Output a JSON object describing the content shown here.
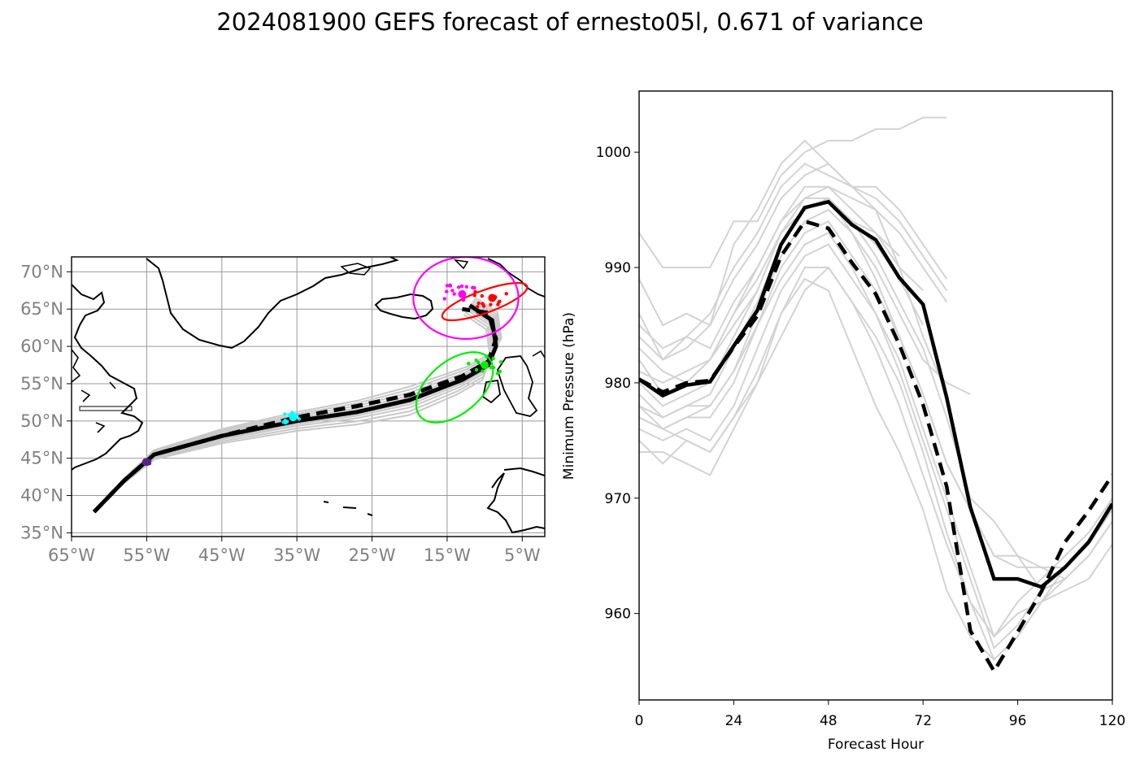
{
  "figure": {
    "title": "2024081900 GEFS forecast of ernesto05l, 0.671 of variance"
  },
  "chart_data": [
    {
      "type": "map",
      "lon_ticks": [
        "65°W",
        "55°W",
        "45°W",
        "35°W",
        "25°W",
        "15°W",
        "5°W"
      ],
      "lat_ticks": [
        "70°N",
        "65°N",
        "60°N",
        "55°N",
        "50°N",
        "45°N",
        "40°N",
        "35°N"
      ],
      "lon_range": [
        -65,
        -2
      ],
      "lat_range": [
        34.5,
        72
      ],
      "grid": true,
      "track_mean": [
        [
          -62,
          37.8
        ],
        [
          -58,
          42
        ],
        [
          -54,
          45.5
        ],
        [
          -45,
          48
        ],
        [
          -35,
          50
        ],
        [
          -27,
          51.2
        ],
        [
          -20,
          52.8
        ],
        [
          -13,
          55.5
        ],
        [
          -9.5,
          57.5
        ],
        [
          -8.5,
          60
        ],
        [
          -9,
          63.5
        ],
        [
          -12,
          65.5
        ]
      ],
      "track_dashed": [
        [
          -62,
          37.8
        ],
        [
          -58,
          42
        ],
        [
          -54,
          45.5
        ],
        [
          -45,
          48
        ],
        [
          -35,
          50.5
        ],
        [
          -27,
          52
        ],
        [
          -20,
          53.5
        ],
        [
          -13,
          56
        ],
        [
          -9.5,
          58
        ],
        [
          -8.5,
          61
        ],
        [
          -9.5,
          64.5
        ],
        [
          -13,
          65
        ]
      ],
      "ellipses": [
        {
          "color": "#ff0000",
          "center": [
            -10,
            66
          ],
          "rx_deg": 6,
          "ry_deg": 1.5,
          "rotation": -20
        },
        {
          "color": "#ff00ff",
          "center": [
            -12.5,
            66.5
          ],
          "rx_deg": 7,
          "ry_deg": 5.5,
          "rotation": 0
        },
        {
          "color": "#00ee00",
          "center": [
            -14,
            54.5
          ],
          "rx_deg": 6,
          "ry_deg": 3.5,
          "rotation": -40
        }
      ],
      "point_clusters": [
        {
          "color": "#552288",
          "center": [
            -55,
            44.5
          ]
        },
        {
          "color": "#00ffff",
          "center": [
            -35.5,
            50.5
          ]
        },
        {
          "color": "#00ee00",
          "center": [
            -10,
            57.5
          ]
        },
        {
          "color": "#ff0000",
          "center": [
            -9,
            66.5
          ]
        },
        {
          "color": "#ff00ff",
          "center": [
            -13,
            67
          ]
        }
      ]
    },
    {
      "type": "line",
      "xlabel": "Forecast Hour",
      "ylabel": "Minimum Pressure (hPa)",
      "xlim": [
        0,
        120
      ],
      "ylim": [
        952.5,
        1005.3
      ],
      "xticks": [
        0,
        24,
        48,
        72,
        96,
        120
      ],
      "yticks": [
        960,
        970,
        980,
        990,
        1000
      ],
      "series": [
        {
          "style": "solid",
          "color": "#000000",
          "x": [
            0,
            6,
            12,
            18,
            24,
            30,
            36,
            42,
            48,
            54,
            60,
            66,
            72,
            78,
            84,
            90,
            96,
            102,
            108,
            114,
            120
          ],
          "y": [
            980.3,
            978.9,
            979.8,
            980.1,
            983.2,
            986.3,
            992,
            995.2,
            995.7,
            993.7,
            992.4,
            989.1,
            986.8,
            978.7,
            969.2,
            963,
            963,
            962.3,
            964,
            966.2,
            969.5
          ]
        },
        {
          "style": "dashed",
          "color": "#000000",
          "x": [
            0,
            6,
            12,
            18,
            24,
            30,
            36,
            42,
            48,
            54,
            60,
            66,
            72,
            78,
            84,
            90,
            96,
            102,
            108,
            114,
            120
          ],
          "y": [
            980.3,
            979.2,
            980,
            980.2,
            983.1,
            985.8,
            991,
            994,
            993.4,
            990.4,
            987.7,
            983.3,
            978.1,
            971,
            958.5,
            955,
            958.4,
            961.9,
            966.2,
            968.9,
            972
          ]
        },
        {
          "style": "ensemble",
          "color": "#d3d3d3",
          "x": [
            0,
            6,
            12,
            18,
            24,
            30,
            36,
            42,
            48,
            54,
            60,
            66,
            72,
            78
          ],
          "y": [
            989,
            985,
            986,
            985,
            992,
            995,
            999,
            1001,
            999,
            997,
            995,
            990,
            984,
            979
          ]
        },
        {
          "style": "ensemble",
          "color": "#d3d3d3",
          "x": [
            0,
            6,
            12,
            18,
            24,
            30,
            36,
            42,
            48,
            54,
            60,
            66,
            72,
            78
          ],
          "y": [
            993,
            990,
            990,
            990,
            994,
            994,
            998,
            1000,
            1001,
            1001,
            1002,
            1002,
            1003,
            1003
          ]
        },
        {
          "style": "ensemble",
          "color": "#d3d3d3",
          "x": [
            0,
            6,
            12,
            18,
            24,
            30,
            36,
            42,
            48,
            54,
            60,
            66,
            72,
            78
          ],
          "y": [
            986,
            982,
            984,
            986,
            990,
            993,
            997,
            999,
            998,
            997,
            997,
            995,
            992,
            989
          ]
        },
        {
          "style": "ensemble",
          "color": "#d3d3d3",
          "x": [
            0,
            6,
            12,
            18,
            24,
            30,
            36,
            42,
            48,
            54,
            60,
            66,
            72,
            78
          ],
          "y": [
            984,
            982,
            983,
            985,
            989,
            992,
            996,
            998,
            999,
            997,
            996,
            994,
            991,
            988
          ]
        },
        {
          "style": "ensemble",
          "color": "#d3d3d3",
          "x": [
            0,
            6,
            12,
            18,
            24,
            30,
            36,
            42,
            48,
            54,
            60,
            66,
            72,
            78
          ],
          "y": [
            982,
            979,
            980,
            982,
            986,
            990,
            994,
            997,
            997,
            996,
            995,
            993,
            990,
            987
          ]
        },
        {
          "style": "ensemble",
          "color": "#d3d3d3",
          "x": [
            0,
            6,
            12,
            18,
            24,
            30,
            36,
            42,
            48,
            54,
            60,
            66,
            72
          ],
          "y": [
            980,
            978,
            979,
            980,
            984,
            988,
            993,
            996,
            997,
            995,
            993,
            990,
            988
          ]
        },
        {
          "style": "ensemble",
          "color": "#d3d3d3",
          "x": [
            0,
            6,
            12,
            18,
            24,
            30,
            36,
            42,
            48,
            54,
            60,
            66,
            72
          ],
          "y": [
            978,
            977,
            978,
            979,
            983,
            987,
            992,
            995,
            996,
            994,
            992,
            989,
            985
          ]
        },
        {
          "style": "ensemble",
          "color": "#d3d3d3",
          "x": [
            0,
            6,
            12,
            18,
            24,
            30,
            36,
            42,
            48,
            54,
            60,
            66,
            72,
            78,
            84,
            90,
            96,
            102,
            108,
            114,
            120
          ],
          "y": [
            977,
            976,
            977,
            977,
            980,
            985,
            990,
            993,
            994,
            991,
            988,
            984,
            979,
            973,
            969,
            965,
            965,
            964,
            963,
            965,
            968
          ]
        },
        {
          "style": "ensemble",
          "color": "#d3d3d3",
          "x": [
            0,
            6,
            12,
            18,
            24,
            30,
            36,
            42,
            48,
            54,
            60,
            66,
            72,
            78,
            84,
            90,
            96,
            102,
            108,
            114,
            120
          ],
          "y": [
            976,
            975,
            976,
            975,
            978,
            983,
            988,
            991,
            992,
            989,
            986,
            982,
            976,
            970,
            964,
            958,
            960,
            961,
            962,
            963,
            966
          ]
        },
        {
          "style": "ensemble",
          "color": "#d3d3d3",
          "x": [
            0,
            6,
            12,
            18,
            24,
            30,
            36,
            42,
            48,
            54,
            60,
            66,
            72,
            78,
            84,
            90,
            96,
            102,
            108,
            114,
            120
          ],
          "y": [
            975,
            973,
            975,
            974,
            977,
            981,
            986,
            990,
            990,
            987,
            984,
            980,
            974,
            967,
            961,
            956,
            958,
            961,
            964,
            966,
            969
          ]
        },
        {
          "style": "ensemble",
          "color": "#d3d3d3",
          "x": [
            0,
            6,
            12,
            18,
            24,
            30,
            36,
            42,
            48,
            54,
            60,
            66,
            72,
            78,
            84,
            90,
            96,
            102,
            108,
            114,
            120
          ],
          "y": [
            974,
            974,
            973,
            972,
            976,
            980,
            984,
            988,
            990,
            987,
            983,
            978,
            972,
            966,
            961,
            958,
            961,
            963,
            965,
            967,
            970
          ]
        },
        {
          "style": "ensemble",
          "color": "#d3d3d3",
          "x": [
            0,
            6,
            12,
            18,
            24,
            30,
            36,
            42,
            48,
            54,
            60,
            66,
            72,
            78,
            84,
            90,
            96,
            102,
            108,
            114,
            120
          ],
          "y": [
            979,
            977,
            978,
            978,
            981,
            985,
            989,
            992,
            993,
            990,
            986,
            981,
            975,
            969,
            963,
            957,
            959,
            962,
            964,
            966,
            969
          ]
        },
        {
          "style": "ensemble",
          "color": "#d3d3d3",
          "x": [
            0,
            6,
            12,
            18,
            24,
            30,
            36,
            42,
            48,
            54,
            60,
            66,
            72,
            78,
            84,
            90,
            96,
            102,
            108
          ],
          "y": [
            978,
            976,
            975,
            974,
            977,
            980,
            986,
            989,
            988,
            983,
            978,
            974,
            969,
            962,
            958,
            956,
            958,
            961,
            963
          ]
        },
        {
          "style": "ensemble",
          "color": "#d3d3d3",
          "x": [
            0,
            6,
            12,
            18,
            24,
            30,
            36,
            42,
            48,
            54,
            60,
            66,
            72,
            78,
            84,
            90,
            96,
            102,
            108,
            114,
            120
          ],
          "y": [
            983,
            981,
            980,
            982,
            986,
            989,
            993,
            995,
            996,
            994,
            991,
            987,
            983,
            977,
            970,
            968,
            965,
            962,
            963,
            965,
            968
          ]
        },
        {
          "style": "ensemble",
          "color": "#d3d3d3",
          "x": [
            0,
            6,
            12,
            18,
            24,
            30,
            36,
            42,
            48,
            54,
            60,
            66
          ],
          "y": [
            981,
            980,
            981,
            982,
            985,
            988,
            993,
            995,
            996,
            994,
            993,
            991
          ]
        },
        {
          "style": "ensemble",
          "color": "#d3d3d3",
          "x": [
            0,
            6,
            12,
            18,
            24,
            30,
            36,
            42,
            48,
            54,
            60,
            66,
            72,
            78,
            84
          ],
          "y": [
            977,
            976,
            977,
            978,
            981,
            986,
            991,
            994,
            995,
            993,
            990,
            986,
            982,
            980,
            979
          ]
        },
        {
          "style": "ensemble",
          "color": "#d3d3d3",
          "x": [
            0,
            6,
            12,
            18,
            24,
            30,
            36,
            42,
            48,
            54,
            60,
            66,
            72,
            78,
            84,
            90,
            96,
            102,
            108,
            114,
            120
          ],
          "y": [
            985,
            983,
            984,
            983,
            987,
            990,
            994,
            996,
            996,
            993,
            989,
            984,
            979,
            973,
            969,
            965,
            964,
            964,
            964,
            966,
            970
          ]
        }
      ]
    }
  ]
}
